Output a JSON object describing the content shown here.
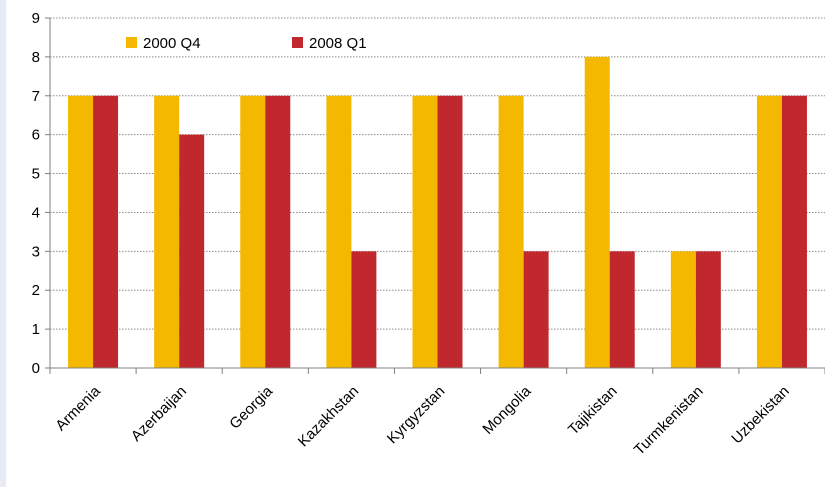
{
  "chart_data": {
    "type": "bar",
    "categories": [
      "Armenia",
      "Azerbaijan",
      "Georgia",
      "Kazakhstan",
      "Kyrgyzstan",
      "Mongolia",
      "Tajikistan",
      "Turmkenistan",
      "Uzbekistan"
    ],
    "series": [
      {
        "name": "2000 Q4",
        "color": "#f5b800",
        "values": [
          7,
          7,
          7,
          7,
          7,
          7,
          8,
          3,
          7
        ]
      },
      {
        "name": "2008 Q1",
        "color": "#c0282d",
        "values": [
          7,
          6,
          7,
          3,
          7,
          3,
          3,
          3,
          7
        ]
      }
    ],
    "ylim": [
      0,
      9
    ],
    "yticks": [
      "0",
      "1",
      "2",
      "3",
      "4",
      "5",
      "6",
      "7",
      "8",
      "9"
    ],
    "grid": "dotted horizontal",
    "legend": "top-left"
  }
}
